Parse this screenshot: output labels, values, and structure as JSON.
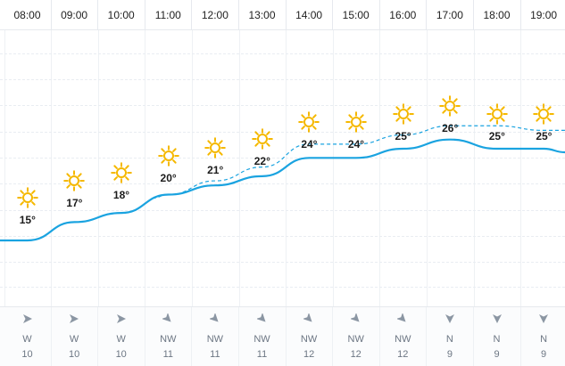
{
  "forecast": {
    "hours": [
      {
        "time": "08:00",
        "temp": "15°",
        "wind_dir": "W",
        "wind_speed": "10",
        "icon": "sun-icon",
        "arrow": "wind-arrow-east-icon"
      },
      {
        "time": "09:00",
        "temp": "17°",
        "wind_dir": "W",
        "wind_speed": "10",
        "icon": "sun-icon",
        "arrow": "wind-arrow-east-icon"
      },
      {
        "time": "10:00",
        "temp": "18°",
        "wind_dir": "W",
        "wind_speed": "10",
        "icon": "sun-icon",
        "arrow": "wind-arrow-east-icon"
      },
      {
        "time": "11:00",
        "temp": "20°",
        "wind_dir": "NW",
        "wind_speed": "11",
        "icon": "sun-icon",
        "arrow": "wind-arrow-southeast-icon"
      },
      {
        "time": "12:00",
        "temp": "21°",
        "wind_dir": "NW",
        "wind_speed": "11",
        "icon": "sun-icon",
        "arrow": "wind-arrow-southeast-icon"
      },
      {
        "time": "13:00",
        "temp": "22°",
        "wind_dir": "NW",
        "wind_speed": "11",
        "icon": "sun-icon",
        "arrow": "wind-arrow-southeast-icon"
      },
      {
        "time": "14:00",
        "temp": "24°",
        "wind_dir": "NW",
        "wind_speed": "12",
        "icon": "sun-icon",
        "arrow": "wind-arrow-southeast-icon"
      },
      {
        "time": "15:00",
        "temp": "24°",
        "wind_dir": "NW",
        "wind_speed": "12",
        "icon": "sun-icon",
        "arrow": "wind-arrow-southeast-icon"
      },
      {
        "time": "16:00",
        "temp": "25°",
        "wind_dir": "NW",
        "wind_speed": "12",
        "icon": "sun-icon",
        "arrow": "wind-arrow-southeast-icon"
      },
      {
        "time": "17:00",
        "temp": "26°",
        "wind_dir": "N",
        "wind_speed": "9",
        "icon": "sun-icon",
        "arrow": "wind-arrow-south-icon"
      },
      {
        "time": "18:00",
        "temp": "25°",
        "wind_dir": "N",
        "wind_speed": "9",
        "icon": "sun-icon",
        "arrow": "wind-arrow-south-icon"
      },
      {
        "time": "19:00",
        "temp": "25°",
        "wind_dir": "N",
        "wind_speed": "9",
        "icon": "sun-icon",
        "arrow": "wind-arrow-south-icon"
      }
    ],
    "feels_like_values": [
      null,
      null,
      null,
      20,
      21.5,
      23,
      25.5,
      25.5,
      26.5,
      27.5,
      27.5,
      27
    ],
    "colors": {
      "sun": "#f5b800",
      "temperature_line": "#1aa3e0",
      "feels_like_line": "#1aa3e0",
      "wind_arrow": "#8b96a3"
    }
  }
}
